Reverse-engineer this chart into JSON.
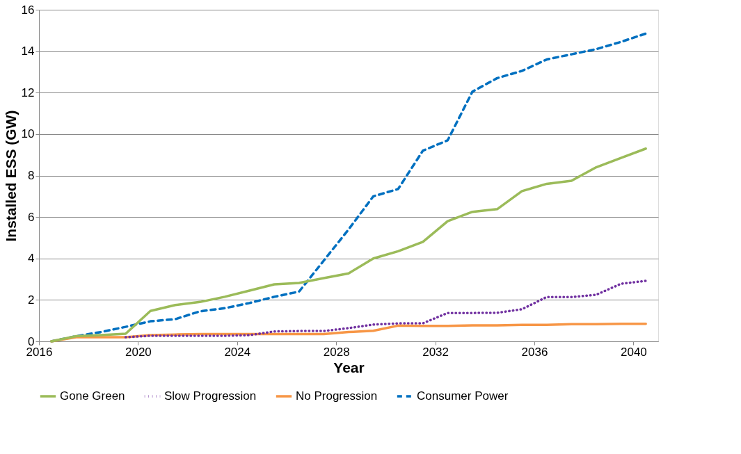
{
  "chart_data": {
    "type": "line",
    "xlabel": "Year",
    "ylabel": "Installed ESS (GW)",
    "x": [
      2016.5,
      2017.5,
      2018.5,
      2019.5,
      2020.5,
      2021.5,
      2022.5,
      2023.5,
      2024.5,
      2025.5,
      2026.5,
      2027.5,
      2028.5,
      2029.5,
      2030.5,
      2031.5,
      2032.5,
      2033.5,
      2034.5,
      2035.5,
      2036.5,
      2037.5,
      2038.5,
      2039.5,
      2040.5
    ],
    "series": [
      {
        "name": "Gone Green",
        "color": "#9bbb59",
        "line_style": "solid",
        "values": [
          0,
          0.25,
          0.3,
          0.37,
          1.47,
          1.75,
          1.9,
          2.15,
          2.45,
          2.75,
          2.82,
          3.05,
          3.28,
          4.0,
          4.35,
          4.8,
          5.8,
          6.25,
          6.38,
          7.25,
          7.6,
          7.75,
          8.4,
          8.85,
          9.3
        ]
      },
      {
        "name": "Slow Progression",
        "color": "#7030a0",
        "line_style": "dotted",
        "values": [
          null,
          null,
          null,
          0.2,
          0.27,
          0.27,
          0.27,
          0.27,
          0.3,
          0.48,
          0.5,
          0.5,
          0.64,
          0.81,
          0.87,
          0.87,
          1.37,
          1.37,
          1.38,
          1.55,
          2.14,
          2.14,
          2.25,
          2.78,
          2.92
        ]
      },
      {
        "name": "No Progression",
        "color": "#f79646",
        "line_style": "solid",
        "values": [
          0,
          0.2,
          0.2,
          0.2,
          0.3,
          0.33,
          0.35,
          0.35,
          0.35,
          0.35,
          0.35,
          0.35,
          0.45,
          0.51,
          0.76,
          0.75,
          0.75,
          0.77,
          0.77,
          0.8,
          0.8,
          0.83,
          0.83,
          0.85,
          0.85
        ]
      },
      {
        "name": "Consumer Power",
        "color": "#0070c0",
        "line_style": "dashed",
        "values": [
          0,
          0.25,
          0.45,
          0.7,
          0.97,
          1.07,
          1.45,
          1.6,
          1.85,
          2.15,
          2.4,
          3.9,
          5.4,
          7.0,
          7.35,
          9.2,
          9.7,
          12.05,
          12.7,
          13.05,
          13.6,
          13.85,
          14.1,
          14.45,
          14.85
        ]
      }
    ],
    "xlim": [
      2016,
      2041
    ],
    "xticks": [
      2016,
      2020,
      2024,
      2028,
      2032,
      2036,
      2040
    ],
    "ylim": [
      0,
      16
    ],
    "yticks": [
      0,
      2,
      4,
      6,
      8,
      10,
      12,
      14,
      16
    ],
    "grid": "y",
    "legend": "bottom",
    "marker": "none"
  }
}
